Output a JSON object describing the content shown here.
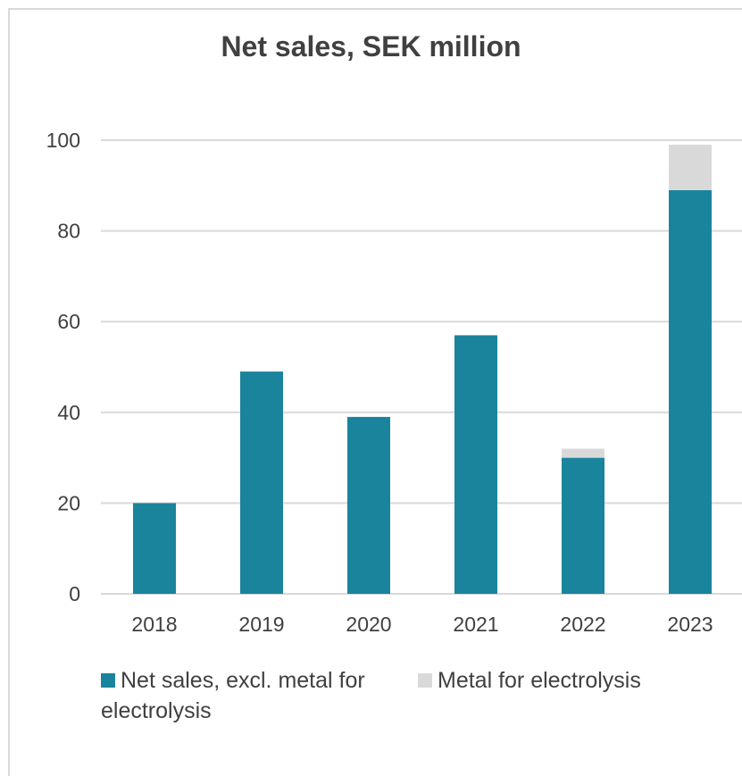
{
  "chart_data": {
    "type": "bar",
    "stacked": true,
    "title": "Net sales, SEK million",
    "xlabel": "",
    "ylabel": "",
    "categories": [
      "2018",
      "2019",
      "2020",
      "2021",
      "2022",
      "2023"
    ],
    "series": [
      {
        "name": "Net sales, excl. metal for electrolysis",
        "color": "#1a849c",
        "values": [
          20,
          49,
          39,
          57,
          30,
          89
        ]
      },
      {
        "name": "Metal for electrolysis",
        "color": "#d9d9d9",
        "values": [
          0,
          0,
          0,
          0,
          2,
          10
        ]
      }
    ],
    "ylim": [
      0,
      100
    ],
    "yticks": [
      "0",
      "20",
      "40",
      "60",
      "80",
      "100"
    ],
    "grid": true,
    "legend_position": "bottom"
  }
}
